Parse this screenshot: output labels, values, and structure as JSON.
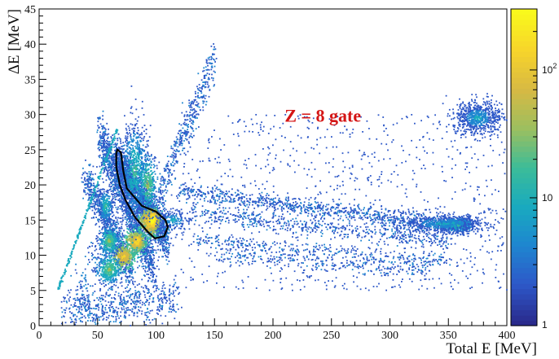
{
  "chart_data": {
    "type": "heatmap",
    "xlabel": "Total E [MeV]",
    "ylabel": "ΔE [MeV]",
    "xlim": [
      0,
      400
    ],
    "ylim": [
      0,
      45
    ],
    "x_ticks": [
      0,
      50,
      100,
      150,
      200,
      250,
      300,
      350,
      400
    ],
    "y_ticks": [
      0,
      5,
      10,
      15,
      20,
      25,
      30,
      35,
      40,
      45
    ],
    "grid": false,
    "colorbar": {
      "scale": "log",
      "range": [
        1,
        300
      ],
      "tick_labels": [
        {
          "value": 1,
          "label": "1"
        },
        {
          "value": 10,
          "label": "10"
        },
        {
          "value": 100,
          "label": "10",
          "exponent": "2"
        }
      ],
      "colors": [
        "#2a2a8c",
        "#2d58c8",
        "#1e86d0",
        "#19aabf",
        "#3cbc98",
        "#9cbf5f",
        "#d7b943",
        "#f7d42b",
        "#f9f91c"
      ]
    },
    "annotation": {
      "text": "Z = 8 gate",
      "x": 210,
      "y": 29,
      "color": "#d41515"
    },
    "gate_polygon": [
      [
        67,
        25
      ],
      [
        70,
        24.6
      ],
      [
        72,
        22
      ],
      [
        75,
        19.5
      ],
      [
        88,
        17
      ],
      [
        100,
        16.2
      ],
      [
        108,
        15
      ],
      [
        110,
        14
      ],
      [
        107,
        12.7
      ],
      [
        99,
        12.4
      ],
      [
        93,
        13.3
      ],
      [
        82,
        15.4
      ],
      [
        74,
        17.8
      ],
      [
        69,
        20
      ],
      [
        66,
        22.5
      ],
      [
        66,
        24.5
      ],
      [
        67,
        25
      ]
    ],
    "bands": [
      {
        "xs": [
          65,
          110
        ],
        "ys": [
          24,
          12
        ],
        "count": 1700,
        "spread": 1.4
      },
      {
        "xs": [
          52,
          98
        ],
        "ys": [
          27,
          8
        ],
        "count": 1300,
        "spread": 1.6
      },
      {
        "xs": [
          40,
          80
        ],
        "ys": [
          21,
          7
        ],
        "count": 700,
        "spread": 1.2
      },
      {
        "xs": [
          20,
          120
        ],
        "ys": [
          2,
          4
        ],
        "count": 600,
        "spread": 1.5
      },
      {
        "xs": [
          120,
          370
        ],
        "ys": [
          19,
          14
        ],
        "count": 900,
        "spread": 0.6
      },
      {
        "xs": [
          130,
          350
        ],
        "ys": [
          16,
          12
        ],
        "count": 500,
        "spread": 0.7
      },
      {
        "xs": [
          130,
          350
        ],
        "ys": [
          12,
          9
        ],
        "count": 350,
        "spread": 0.6
      },
      {
        "xs": [
          150,
          330
        ],
        "ys": [
          10,
          7.5
        ],
        "count": 250,
        "spread": 0.6
      },
      {
        "xs": [
          95,
          150
        ],
        "ys": [
          15,
          38
        ],
        "count": 500,
        "spread": 1.5
      },
      {
        "xs": [
          30,
          90
        ],
        "ys": [
          4,
          20
        ],
        "count": 300,
        "spread": 2.5
      }
    ],
    "line_band": {
      "xs": [
        16,
        67
      ],
      "ys": [
        5,
        28
      ]
    },
    "blobs": [
      {
        "x": 95,
        "y": 14.8,
        "sx": 4,
        "sy": 0.9,
        "count": 500,
        "level": 8
      },
      {
        "x": 97,
        "y": 15,
        "sx": 2.5,
        "sy": 0.6,
        "count": 250,
        "level": 9
      },
      {
        "x": 82,
        "y": 11.8,
        "sx": 5,
        "sy": 0.9,
        "count": 400,
        "level": 7
      },
      {
        "x": 84,
        "y": 12,
        "sx": 2.5,
        "sy": 0.6,
        "count": 150,
        "level": 8
      },
      {
        "x": 72,
        "y": 9.8,
        "sx": 5,
        "sy": 0.9,
        "count": 400,
        "level": 7
      },
      {
        "x": 60,
        "y": 12,
        "sx": 4,
        "sy": 1,
        "count": 300,
        "level": 5
      },
      {
        "x": 60,
        "y": 8,
        "sx": 5,
        "sy": 1,
        "count": 350,
        "level": 5
      },
      {
        "x": 57,
        "y": 17,
        "sx": 3,
        "sy": 1.3,
        "count": 250,
        "level": 4
      },
      {
        "x": 375,
        "y": 29.5,
        "sx": 10,
        "sy": 1.2,
        "count": 700,
        "level": 3
      },
      {
        "x": 358,
        "y": 14.3,
        "sx": 8,
        "sy": 0.6,
        "count": 500,
        "level": 4
      },
      {
        "x": 345,
        "y": 14.5,
        "sx": 20,
        "sy": 0.7,
        "count": 500,
        "level": 3
      },
      {
        "x": 82,
        "y": 22,
        "sx": 6,
        "sy": 3.5,
        "count": 700,
        "level": 4
      },
      {
        "x": 93,
        "y": 20,
        "sx": 4,
        "sy": 2,
        "count": 300,
        "level": 5
      },
      {
        "x": 115,
        "y": 15,
        "sx": 8,
        "sy": 0.8,
        "count": 200,
        "level": 3
      }
    ],
    "sparse_region": {
      "x": [
        120,
        400
      ],
      "y": [
        5,
        30
      ],
      "count": 900
    }
  }
}
